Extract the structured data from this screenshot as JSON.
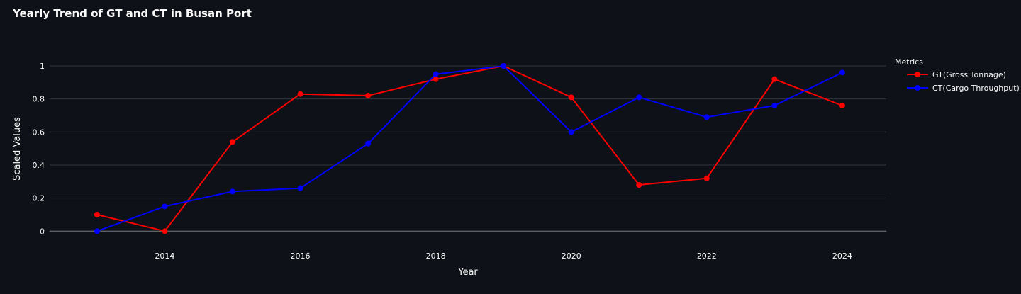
{
  "chart_data": {
    "type": "line",
    "title": "Yearly Trend of GT and CT in Busan Port",
    "xlabel": "Year",
    "ylabel": "Scaled Values",
    "x": [
      2013,
      2014,
      2015,
      2016,
      2017,
      2018,
      2019,
      2020,
      2021,
      2022,
      2023,
      2024
    ],
    "x_ticks": [
      "2014",
      "2016",
      "2018",
      "2020",
      "2022",
      "2024"
    ],
    "y_ticks": [
      "0",
      "0.2",
      "0.4",
      "0.6",
      "0.8",
      "1"
    ],
    "xlim": [
      2012.3,
      2024.65
    ],
    "ylim": [
      -0.08,
      1.12
    ],
    "grid": "horizontal",
    "legend": {
      "title": "Metrics",
      "position": "right"
    },
    "series": [
      {
        "name": "GT(Gross Tonnage)",
        "color": "#ff0000",
        "values": [
          0.1,
          0.0,
          0.54,
          0.83,
          0.82,
          0.92,
          1.0,
          0.81,
          0.28,
          0.32,
          0.92,
          0.76
        ]
      },
      {
        "name": "CT(Cargo Throughput)",
        "color": "#0000ff",
        "values": [
          0.0,
          0.15,
          0.24,
          0.26,
          0.53,
          0.95,
          1.0,
          0.6,
          0.81,
          0.69,
          0.76,
          0.96
        ]
      }
    ]
  }
}
